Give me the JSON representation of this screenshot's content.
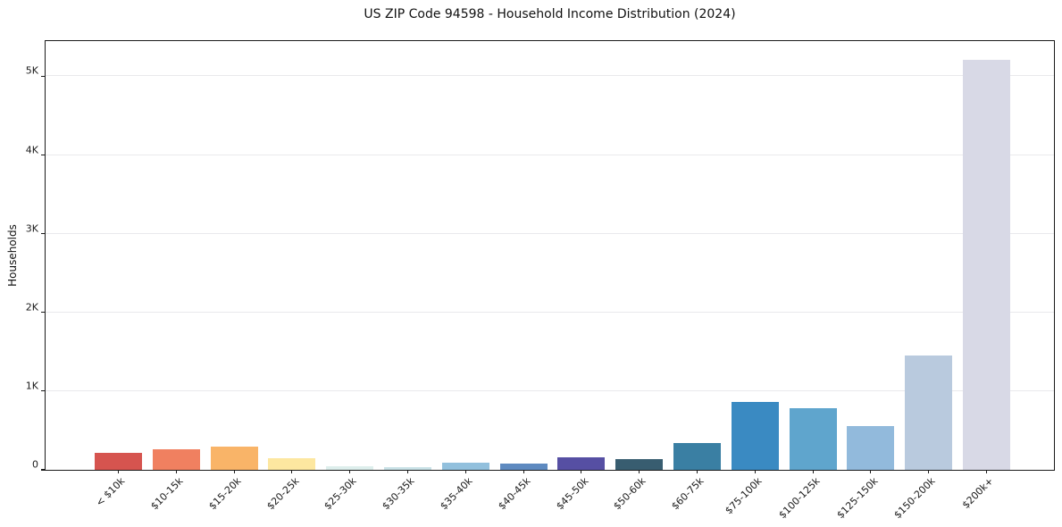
{
  "chart_data": {
    "type": "bar",
    "title": "US ZIP Code 94598 - Household Income Distribution (2024)",
    "xlabel": "",
    "ylabel": "Households",
    "categories": [
      "< $10k",
      "$10-15k",
      "$15-20k",
      "$20-25k",
      "$25-30k",
      "$30-35k",
      "$35-40k",
      "$40-45k",
      "$45-50k",
      "$50-60k",
      "$60-75k",
      "$75-100k",
      "$100-125k",
      "$125-150k",
      "$150-200k",
      "$200k+"
    ],
    "values": [
      220,
      265,
      290,
      150,
      50,
      30,
      90,
      85,
      155,
      140,
      340,
      860,
      780,
      555,
      1450,
      5210
    ],
    "bar_colors": [
      "#d6544f",
      "#f08060",
      "#f9b468",
      "#fde7a0",
      "#ddeeec",
      "#c9e1e6",
      "#92c0dd",
      "#5e8ac0",
      "#564fa3",
      "#385d70",
      "#3a7fa3",
      "#3a8ac2",
      "#5fa5cd",
      "#92badc",
      "#b9cade",
      "#d8d9e6"
    ],
    "yticks": [
      {
        "value": 0,
        "label": "0"
      },
      {
        "value": 1000,
        "label": "1K"
      },
      {
        "value": 2000,
        "label": "2K"
      },
      {
        "value": 3000,
        "label": "3K"
      },
      {
        "value": 4000,
        "label": "4K"
      },
      {
        "value": 5000,
        "label": "5K"
      }
    ],
    "ylim": [
      0,
      5470
    ],
    "grid": "horizontal",
    "legend": "none"
  },
  "colors": {
    "background": "#ffffff",
    "axis": "#1a1a1a",
    "gridline": "#e9e9ec",
    "text": "#111111"
  }
}
